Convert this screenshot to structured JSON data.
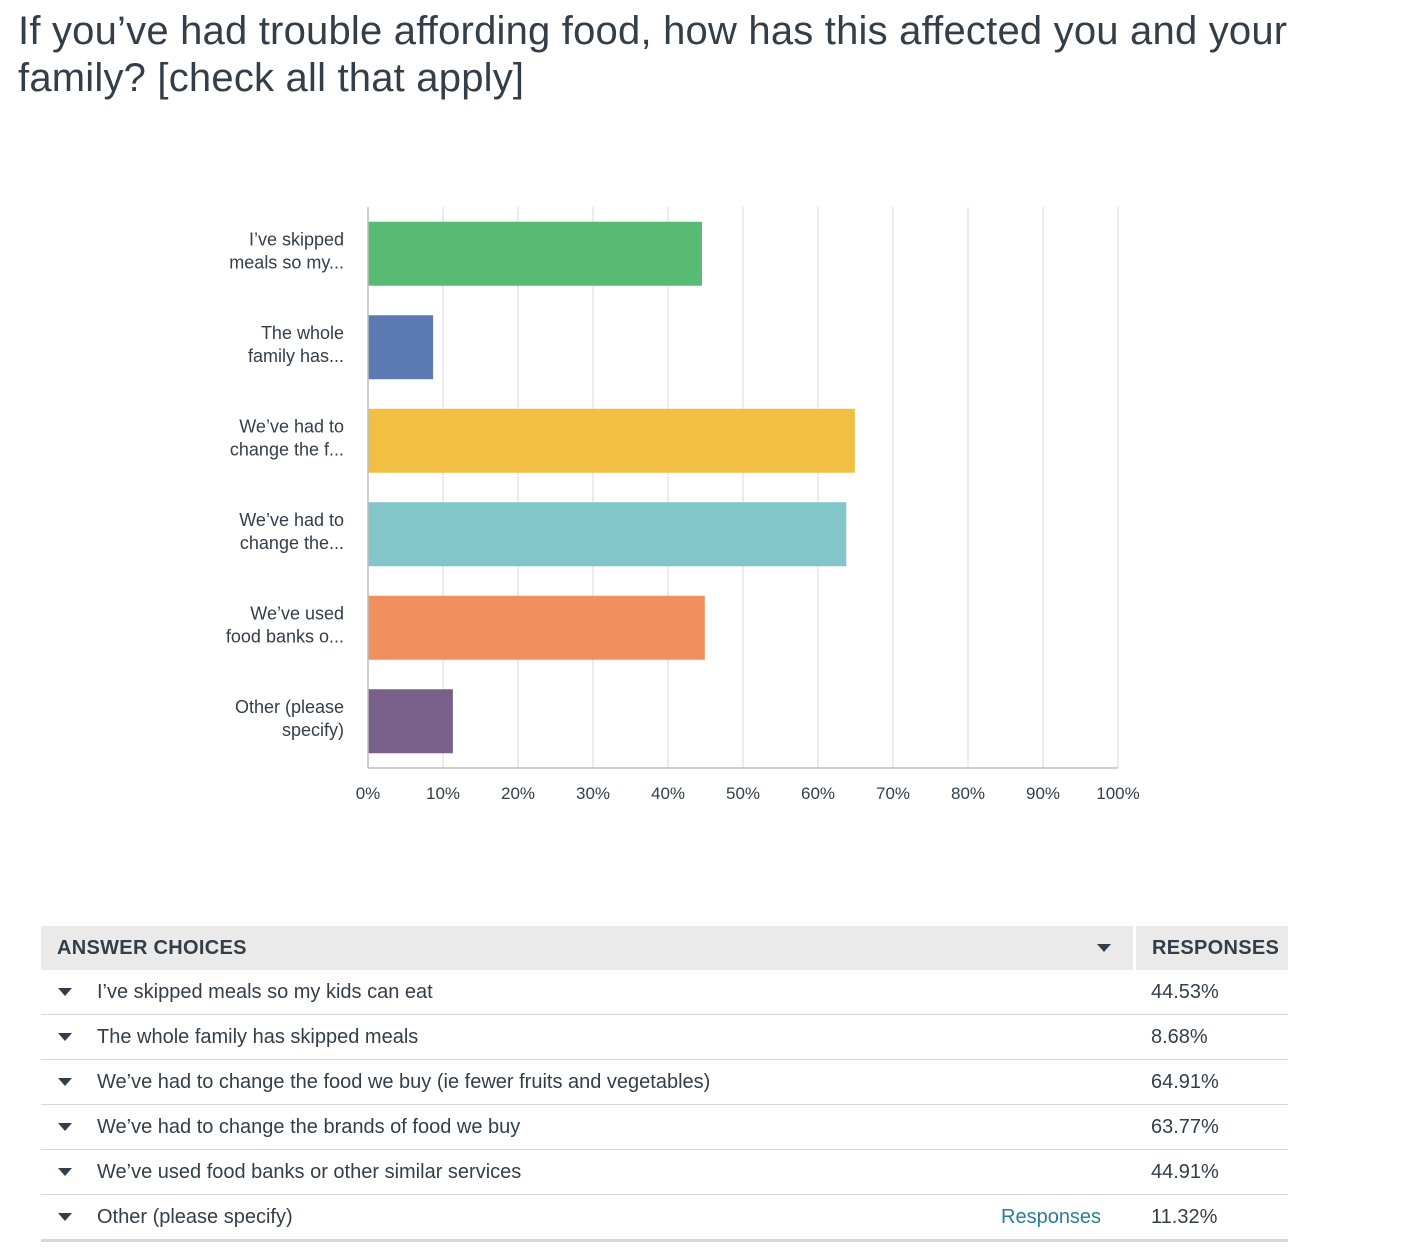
{
  "title": "If you’ve had trouble affording food, how has this affected you and your family? [check all that apply]",
  "chart_data": {
    "type": "bar",
    "orientation": "horizontal",
    "categories": [
      [
        "I’ve skipped",
        "meals so my..."
      ],
      [
        "The whole",
        "family has..."
      ],
      [
        "We’ve had to",
        "change the f..."
      ],
      [
        "We’ve had to",
        "change the..."
      ],
      [
        "We’ve used",
        "food banks o..."
      ],
      [
        "Other (please",
        "specify)"
      ]
    ],
    "values": [
      44.53,
      8.68,
      64.91,
      63.77,
      44.91,
      11.32
    ],
    "colors": [
      "#57bb74",
      "#5a7ab1",
      "#f1bf42",
      "#82c6ca",
      "#f0905e",
      "#78608b"
    ],
    "xlim": [
      0,
      100
    ],
    "xticks": [
      "0%",
      "10%",
      "20%",
      "30%",
      "40%",
      "50%",
      "60%",
      "70%",
      "80%",
      "90%",
      "100%"
    ],
    "grid": true,
    "legend": "none"
  },
  "table": {
    "header_choices": "ANSWER CHOICES",
    "header_responses": "RESPONSES",
    "rows": [
      {
        "label": "I’ve skipped meals so my kids can eat",
        "pct": "44.53%"
      },
      {
        "label": "The whole family has skipped meals",
        "pct": "8.68%"
      },
      {
        "label": "We’ve had to change the food we buy (ie fewer fruits and vegetables)",
        "pct": "64.91%"
      },
      {
        "label": "We’ve had to change the brands of food we buy",
        "pct": "63.77%"
      },
      {
        "label": "We’ve used food banks or other similar services",
        "pct": "44.91%"
      },
      {
        "label": "Other (please specify)",
        "link": "Responses",
        "pct": "11.32%"
      }
    ]
  }
}
